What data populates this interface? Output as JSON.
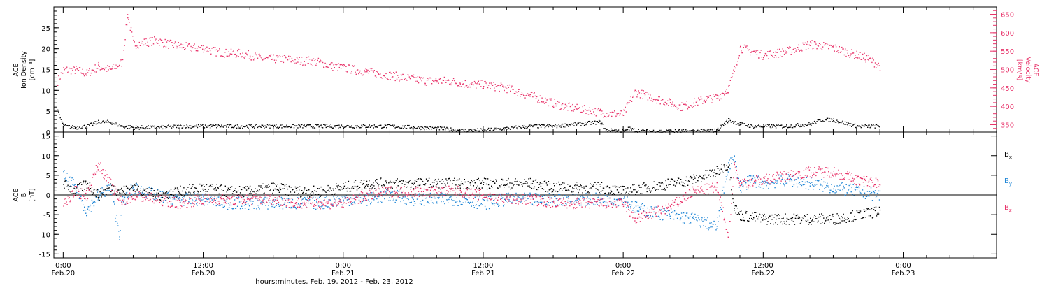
{
  "colors": {
    "black": "#000000",
    "red": "#e8336a",
    "blue": "#1f86d6"
  },
  "xlabel": "hours:minutes, Feb. 19, 2012 - Feb. 23, 2012",
  "x_ticks": [
    {
      "hour": 0,
      "time": "0:00",
      "date": "Feb.20"
    },
    {
      "hour": 12,
      "time": "12:00",
      "date": "Feb.20"
    },
    {
      "hour": 24,
      "time": "0:00",
      "date": "Feb.21"
    },
    {
      "hour": 36,
      "time": "12:00",
      "date": "Feb.21"
    },
    {
      "hour": 48,
      "time": "0:00",
      "date": "Feb.22"
    },
    {
      "hour": 60,
      "time": "12:00",
      "date": "Feb.22"
    },
    {
      "hour": 72,
      "time": "0:00",
      "date": "Feb.23"
    }
  ],
  "chart_data": [
    {
      "type": "scatter",
      "panel": "top",
      "ylabel_lines": [
        "ACE",
        "Ion Density",
        "[cm⁻³]"
      ],
      "ylabel2_lines": [
        "ACE",
        "Velocity",
        "[km/s]"
      ],
      "xlim_hours": [
        -0.8,
        80
      ],
      "ylim": [
        0,
        30
      ],
      "ylim2": [
        330,
        670
      ],
      "yticks": [
        0,
        5,
        10,
        15,
        20,
        25
      ],
      "yticks2": [
        350,
        400,
        450,
        500,
        550,
        600,
        650
      ],
      "series": [
        {
          "axis": "left",
          "color": "#000000",
          "hours": [
            -0.5,
            0,
            1,
            2,
            3,
            4,
            5,
            6,
            8,
            10,
            12,
            14,
            16,
            18,
            20,
            22,
            24,
            26,
            28,
            30,
            32,
            34,
            36,
            38,
            40,
            42,
            44,
            46,
            46.5,
            47,
            48,
            48.2,
            48.4,
            49,
            50,
            52,
            54,
            56,
            57,
            58,
            59,
            60,
            62,
            64,
            65,
            66,
            68,
            70
          ],
          "values": [
            5,
            1.5,
            1.2,
            1.5,
            2.5,
            2.5,
            1.5,
            1.2,
            1.2,
            1.5,
            1.5,
            1.5,
            1.5,
            1.5,
            1.5,
            1.5,
            1.5,
            1.5,
            1.5,
            1.2,
            1.0,
            0.5,
            0.5,
            1.0,
            1.5,
            1.5,
            2.0,
            2.5,
            0.5,
            0.5,
            0.3,
            0.3,
            1.0,
            0.5,
            0.3,
            0.3,
            0.3,
            0.5,
            3.0,
            2.0,
            1.5,
            1.5,
            1.5,
            2.0,
            3.0,
            3.0,
            1.5,
            1.5
          ]
        },
        {
          "axis": "right",
          "color": "#e8336a",
          "hours": [
            -0.5,
            0,
            1,
            2,
            3,
            4,
            5,
            5.5,
            6,
            7,
            8,
            9,
            10,
            11,
            12,
            13,
            14,
            15,
            16,
            17,
            18,
            19,
            20,
            21,
            22,
            23,
            24,
            25,
            26,
            27,
            28,
            29,
            30,
            31,
            32,
            33,
            34,
            35,
            36,
            37,
            38,
            39,
            40,
            41,
            42,
            43,
            44,
            45,
            46,
            47,
            48,
            49,
            50,
            51,
            52,
            53,
            54,
            55,
            56,
            57,
            57.5,
            58,
            59,
            60,
            61,
            62,
            63,
            64,
            65,
            66,
            67,
            68,
            69,
            70
          ],
          "values": [
            470,
            500,
            500,
            490,
            510,
            500,
            520,
            650,
            570,
            575,
            580,
            570,
            565,
            560,
            560,
            550,
            545,
            545,
            540,
            530,
            530,
            530,
            525,
            525,
            520,
            510,
            505,
            500,
            495,
            490,
            485,
            480,
            475,
            470,
            470,
            470,
            465,
            460,
            460,
            455,
            450,
            440,
            430,
            420,
            410,
            400,
            395,
            390,
            385,
            380,
            380,
            440,
            430,
            420,
            410,
            400,
            410,
            420,
            425,
            450,
            500,
            560,
            550,
            540,
            545,
            550,
            560,
            570,
            565,
            560,
            550,
            540,
            530,
            510
          ]
        }
      ]
    },
    {
      "type": "scatter",
      "panel": "bottom",
      "ylabel_lines": [
        "ACE",
        "B",
        "[nT]"
      ],
      "xlim_hours": [
        -0.8,
        80
      ],
      "ylim": [
        -16,
        16
      ],
      "yticks": [
        -15,
        -10,
        -5,
        0,
        5,
        10,
        15
      ],
      "series": [
        {
          "name": "Bx",
          "color": "#000000",
          "hours": [
            0,
            1,
            2,
            3,
            4,
            5,
            6,
            8,
            10,
            12,
            14,
            16,
            18,
            20,
            22,
            24,
            26,
            28,
            30,
            32,
            34,
            36,
            38,
            40,
            42,
            44,
            46,
            48,
            50,
            52,
            54,
            56,
            57,
            57.5,
            58,
            60,
            62,
            64,
            66,
            68,
            70
          ],
          "values": [
            3,
            1,
            3,
            0,
            2,
            1,
            2,
            0,
            1,
            2,
            1,
            1,
            2,
            1,
            1,
            2,
            3,
            3,
            3,
            3,
            3,
            3,
            3,
            3,
            2,
            2,
            2,
            1,
            2,
            3,
            4,
            6,
            8,
            -3,
            -5,
            -6,
            -6,
            -6,
            -6,
            -5,
            -4
          ]
        },
        {
          "name": "By",
          "color": "#1f86d6",
          "hours": [
            0,
            1,
            2,
            3,
            4,
            4.8,
            5,
            6,
            8,
            10,
            12,
            14,
            16,
            18,
            20,
            22,
            24,
            26,
            28,
            30,
            32,
            34,
            36,
            38,
            40,
            42,
            44,
            46,
            48,
            49,
            50,
            52,
            54,
            56,
            57,
            57.5,
            58,
            59,
            60,
            62,
            64,
            66,
            68,
            70
          ],
          "values": [
            5,
            2,
            -4,
            0,
            2,
            -10,
            -2,
            2,
            0,
            -1,
            -1,
            -2,
            -2,
            -2,
            -2,
            -2,
            -1,
            -1,
            0,
            -1,
            -1,
            -1,
            -2,
            -1,
            -1,
            -1,
            -1,
            -1,
            -1,
            -3,
            -4,
            -5,
            -6,
            -8,
            8,
            9,
            2,
            4,
            3,
            4,
            3,
            2,
            1,
            0
          ]
        },
        {
          "name": "Bz",
          "color": "#e8336a",
          "hours": [
            0,
            1,
            2,
            3,
            4,
            5,
            6,
            8,
            10,
            12,
            14,
            16,
            18,
            20,
            22,
            24,
            26,
            28,
            30,
            32,
            34,
            36,
            38,
            40,
            42,
            44,
            46,
            48,
            49,
            50,
            52,
            54,
            56,
            57,
            57.5,
            58,
            60,
            62,
            64,
            66,
            68,
            70
          ],
          "values": [
            -2,
            1,
            0,
            8,
            3,
            -2,
            0,
            -1,
            -2,
            -1,
            -1,
            -1,
            -1,
            -2,
            -2,
            -2,
            0,
            1,
            1,
            1,
            1,
            0,
            -1,
            -1,
            -2,
            -2,
            -2,
            -2,
            -6,
            -5,
            -3,
            1,
            2,
            -10,
            8,
            3,
            4,
            5,
            6,
            6,
            4,
            3
          ]
        }
      ]
    }
  ],
  "legend": [
    {
      "label": "B",
      "sub": "x",
      "color": "#000000"
    },
    {
      "label": "B",
      "sub": "y",
      "color": "#1f86d6"
    },
    {
      "label": "B",
      "sub": "z",
      "color": "#e8336a"
    }
  ]
}
